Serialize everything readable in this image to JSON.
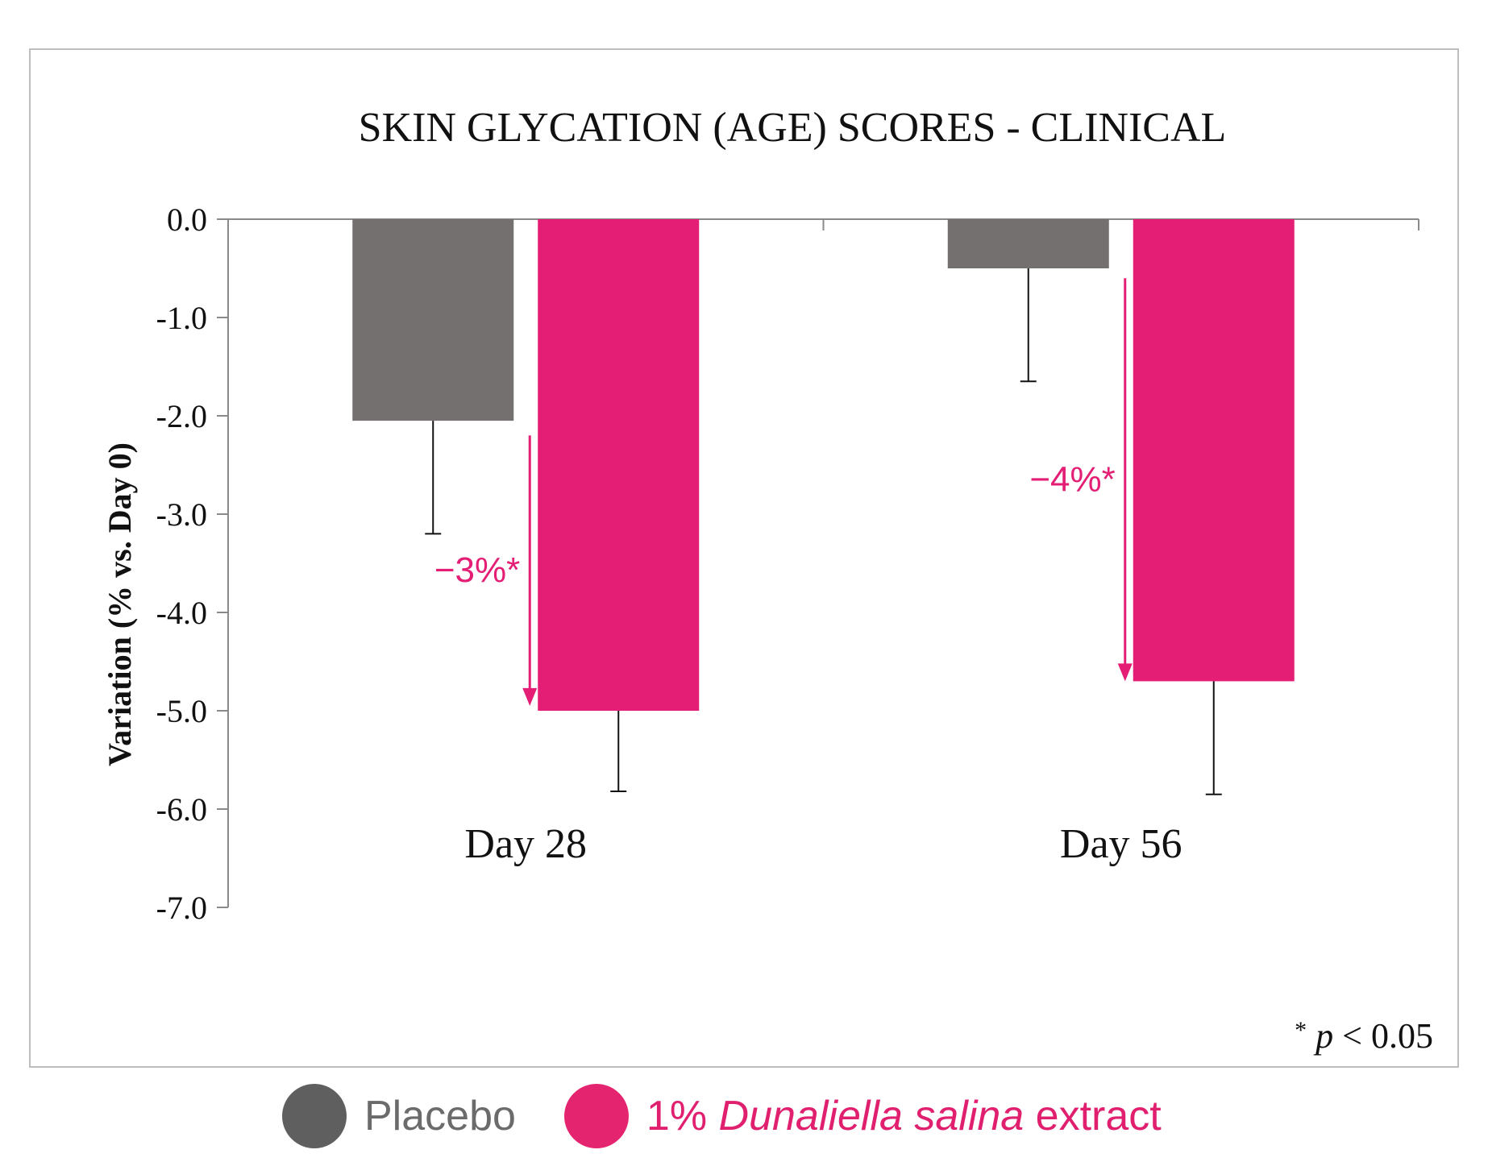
{
  "chart_data": {
    "type": "bar",
    "title": "SKIN GLYCATION (AGE) SCORES - CLINICAL",
    "ylabel": "Variation (% vs. Day 0)",
    "xlabel": "",
    "ylim": [
      -7.0,
      0.0
    ],
    "yticks": [
      "0.0",
      "-1.0",
      "-2.0",
      "-3.0",
      "-4.0",
      "-5.0",
      "-6.0",
      "-7.0"
    ],
    "ytick_values": [
      0,
      -1,
      -2,
      -3,
      -4,
      -5,
      -6,
      -7
    ],
    "categories": [
      "Day 28",
      "Day 56"
    ],
    "series": [
      {
        "name": "Placebo",
        "color": "#757070",
        "values": [
          -2.05,
          -0.5
        ],
        "error_low": [
          -3.2,
          -1.65
        ]
      },
      {
        "name": "1% Dunaliella salina extract",
        "color": "#e31e74",
        "values": [
          -5.0,
          -4.7
        ],
        "error_low": [
          -5.82,
          -5.85
        ]
      }
    ],
    "annotations": [
      {
        "text": "−3%*",
        "category": "Day 28",
        "from": -2.2,
        "to": -4.95
      },
      {
        "text": "−4%*",
        "category": "Day 56",
        "from": -0.6,
        "to": -4.7
      }
    ],
    "footnote": "* p < 0.05",
    "footnote_symbol": "*",
    "footnote_p": "p",
    "footnote_rest": "< 0.05",
    "grid": false,
    "legend_position": "bottom"
  },
  "legend": {
    "placebo_label": "Placebo",
    "extract_label_prefix": "1% ",
    "extract_label_species": "Dunaliella salina",
    "extract_label_suffix": " extract",
    "placebo_color": "#5f5f5f",
    "extract_color": "#e5246f"
  }
}
